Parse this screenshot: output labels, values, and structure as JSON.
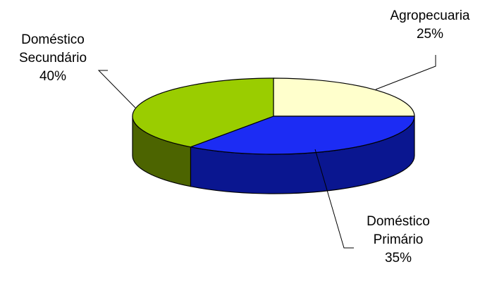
{
  "chart_data": {
    "type": "pie",
    "title": "",
    "style": "3d",
    "slices": [
      {
        "label_lines": [
          "Agropecuaria"
        ],
        "percent_text": "25%",
        "value": 25,
        "color": "#FFFFCC",
        "side_color": "#9D9D6E"
      },
      {
        "label_lines": [
          "Doméstico",
          "Primário"
        ],
        "percent_text": "35%",
        "value": 35,
        "color": "#1C2CF4",
        "side_color": "#0A1690"
      },
      {
        "label_lines": [
          "Doméstico",
          "Secundário"
        ],
        "percent_text": "40%",
        "value": 40,
        "color": "#9ACD00",
        "side_color": "#4C6400"
      }
    ],
    "grid": false,
    "legend": "none"
  }
}
